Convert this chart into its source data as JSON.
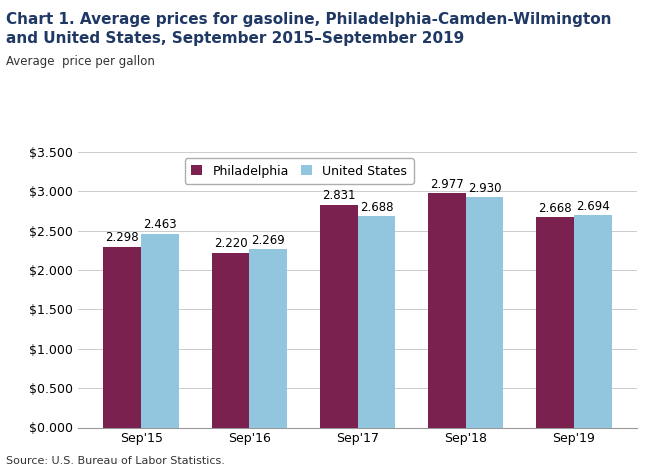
{
  "title_line1": "Chart 1. Average prices for gasoline, Philadelphia-Camden-Wilmington",
  "title_line2": "and United States, September 2015–September 2019",
  "ylabel": "Average  price per gallon",
  "categories": [
    "Sep'15",
    "Sep'16",
    "Sep'17",
    "Sep'18",
    "Sep'19"
  ],
  "philadelphia": [
    2.298,
    2.22,
    2.831,
    2.977,
    2.668
  ],
  "us": [
    2.463,
    2.269,
    2.688,
    2.93,
    2.694
  ],
  "philly_color": "#7B2150",
  "us_color": "#92C5DE",
  "ylim": [
    0,
    3.5
  ],
  "yticks": [
    0.0,
    0.5,
    1.0,
    1.5,
    2.0,
    2.5,
    3.0,
    3.5
  ],
  "bar_width": 0.35,
  "legend_labels": [
    "Philadelphia",
    "United States"
  ],
  "source": "Source: U.S. Bureau of Labor Statistics.",
  "title_fontsize": 11,
  "axis_label_fontsize": 8.5,
  "tick_fontsize": 9,
  "annotation_fontsize": 8.5,
  "legend_fontsize": 9,
  "source_fontsize": 8,
  "title_color": "#1F3864"
}
